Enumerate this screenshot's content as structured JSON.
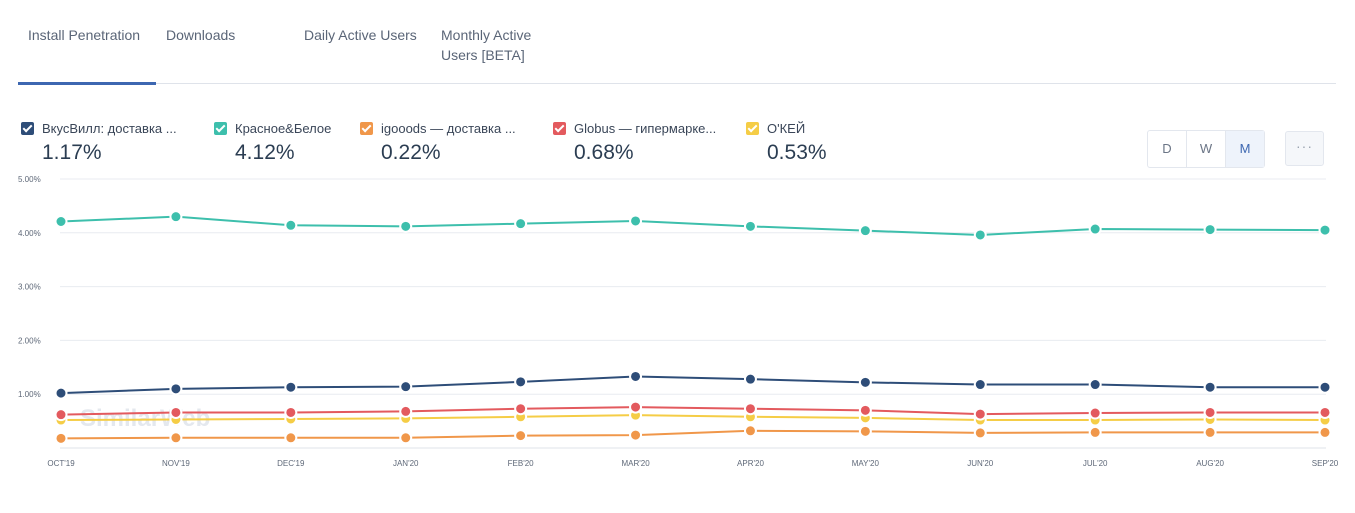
{
  "tabs": [
    {
      "label": "Install Penetration"
    },
    {
      "label": "Downloads"
    },
    {
      "label": "Daily Active Users"
    },
    {
      "label": "Monthly Active",
      "label2": "Users [BETA]"
    }
  ],
  "granularity": {
    "options": [
      "D",
      "W",
      "M"
    ],
    "selected": "M",
    "more_label": "···"
  },
  "watermark": "SimilarWeb",
  "chart_data": {
    "type": "line",
    "x": [
      "OCT'19",
      "NOV'19",
      "DEC'19",
      "JAN'20",
      "FEB'20",
      "MAR'20",
      "APR'20",
      "MAY'20",
      "JUN'20",
      "JUL'20",
      "AUG'20",
      "SEP'20"
    ],
    "ylim": [
      0,
      5
    ],
    "yticks": [
      "1.00%",
      "2.00%",
      "3.00%",
      "4.00%",
      "5.00%"
    ],
    "grid": true,
    "series": [
      {
        "name": "ВкусВилл: доставка ...",
        "value_label": "1.17%",
        "color": "#2e4d78",
        "values": [
          1.02,
          1.1,
          1.13,
          1.14,
          1.23,
          1.33,
          1.28,
          1.22,
          1.18,
          1.18,
          1.13,
          1.13
        ]
      },
      {
        "name": "Красное&Белое",
        "value_label": "4.12%",
        "color": "#3dbfac",
        "values": [
          4.21,
          4.3,
          4.14,
          4.12,
          4.17,
          4.22,
          4.12,
          4.04,
          3.96,
          4.07,
          4.06,
          4.05
        ]
      },
      {
        "name": "igooods — доставка ...",
        "value_label": "0.22%",
        "color": "#f0974a",
        "values": [
          0.18,
          0.19,
          0.19,
          0.19,
          0.23,
          0.24,
          0.32,
          0.31,
          0.28,
          0.29,
          0.29,
          0.29
        ]
      },
      {
        "name": "Globus — гипермарке...",
        "value_label": "0.68%",
        "color": "#e35a5e",
        "values": [
          0.62,
          0.66,
          0.66,
          0.68,
          0.73,
          0.76,
          0.73,
          0.7,
          0.63,
          0.65,
          0.66,
          0.66
        ]
      },
      {
        "name": "О'КЕЙ",
        "value_label": "0.53%",
        "color": "#f5cd46",
        "values": [
          0.52,
          0.53,
          0.54,
          0.55,
          0.58,
          0.61,
          0.58,
          0.56,
          0.52,
          0.52,
          0.53,
          0.52
        ]
      }
    ]
  }
}
